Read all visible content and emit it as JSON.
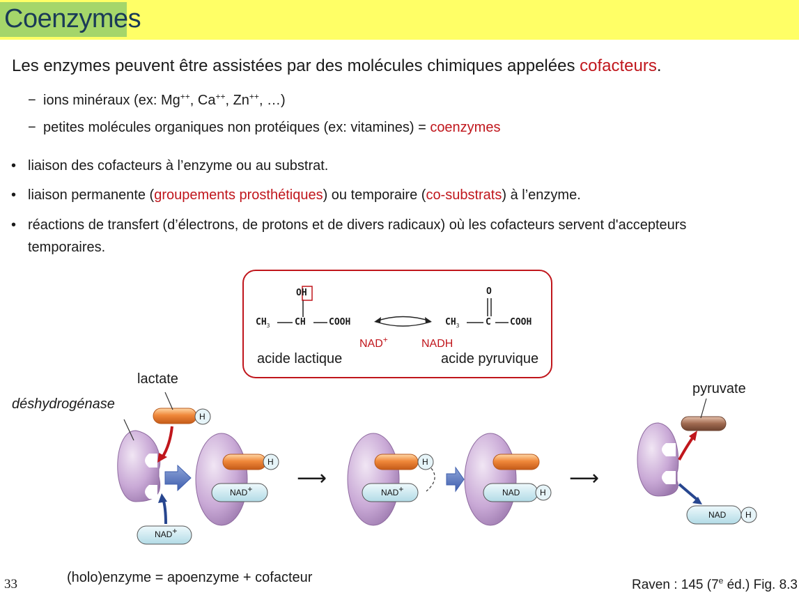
{
  "slide": {
    "title": "Coenzymes",
    "intro": {
      "before": "Les enzymes peuvent être assistées par des molécules chimiques appelées ",
      "highlight": "cofacteurs",
      "after": "."
    },
    "dash_items": [
      {
        "marker": "−",
        "a": "ions minéraux (ex: Mg",
        "a_sup": "++",
        "b": ", Ca",
        "b_sup": "++",
        "c": ", Zn",
        "c_sup": "++",
        "d": ", …)"
      },
      {
        "marker": "−",
        "text": "petites molécules organiques non protéiques (ex: vitamines) = ",
        "highlight": "coenzymes"
      }
    ],
    "bullets": [
      {
        "marker": "•",
        "text": "liaison des cofacteurs à l’enzyme ou au substrat."
      },
      {
        "marker": "•",
        "p1": "liaison permanente (",
        "h1": "groupements prosthétiques",
        "p2": ") ou temporaire (",
        "h2": "co-substrats",
        "p3": ") à l’enzyme."
      },
      {
        "marker": "•",
        "line1": "réactions de transfert (d’électrons, de protons et de divers radicaux) où les cofacteurs servent d'accepteurs",
        "line2": "temporaires."
      }
    ],
    "reaction": {
      "lactic_top": "OH",
      "lactic_chain": {
        "ch3": "CH",
        "sub": "3",
        "ch": "CH",
        "cooh": "COOH"
      },
      "pyruvic_top": "O",
      "pyruvic_chain": {
        "ch3": "CH",
        "sub": "3",
        "c": "C",
        "cooh": "COOH"
      },
      "nad_left": "NAD",
      "nad_left_sup": "+",
      "nad_right": "NADH",
      "name_left": "acide lactique",
      "name_right": "acide pyruvique"
    },
    "diagram": {
      "lactate": "lactate",
      "enzyme": "déshydrogénase",
      "pyruvate": "pyruvate",
      "h": "H",
      "nad": "NAD",
      "nad_sup": "+",
      "arrow": "⟶",
      "caption": "(holo)enzyme = apoenzyme + cofacteur"
    },
    "page_number": "33",
    "source": {
      "a": "Raven : 145 (7",
      "sup": "e",
      "b": " éd.) Fig. 8.3"
    },
    "colors": {
      "title_band": "#ffff66",
      "title_highlight": "#a5d66a",
      "accent_red": "#c0161c",
      "enzyme": "#c9a9d6",
      "substrate": "#f0883a",
      "pyruvate": "#a06a50",
      "nad": "#c6e6ee",
      "arrow_blue": "#5a78c0"
    }
  }
}
